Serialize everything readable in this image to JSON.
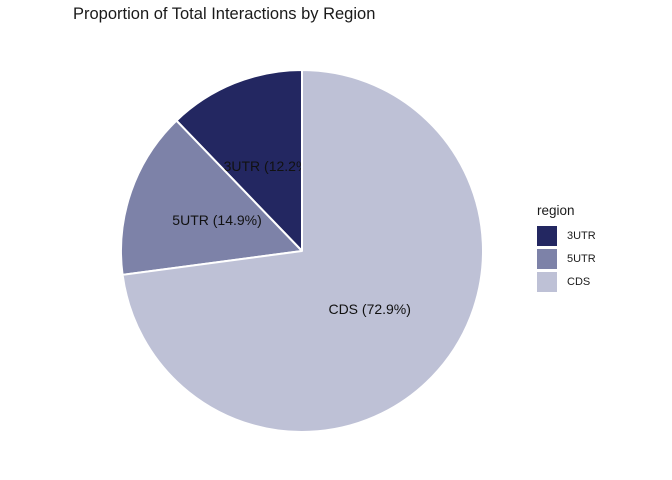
{
  "title": "Proportion of Total Interactions by Region",
  "chart_data": {
    "type": "pie",
    "title": "Proportion of Total Interactions by Region",
    "categories": [
      "3UTR",
      "5UTR",
      "CDS"
    ],
    "values": [
      12.2,
      14.9,
      72.9
    ],
    "unit": "percent",
    "slice_labels": [
      "3UTR (12.2%)",
      "5UTR (14.9%)",
      "CDS (72.9%)"
    ],
    "colors": [
      "#232761",
      "#7d82a8",
      "#bec1d6"
    ],
    "separator_color": "#ffffff",
    "start_angle_deg": 90,
    "direction": "counterclockwise",
    "legend": {
      "title": "region",
      "position": "right",
      "items": [
        {
          "label": "3UTR",
          "color": "#232761"
        },
        {
          "label": "5UTR",
          "color": "#7d82a8"
        },
        {
          "label": "CDS",
          "color": "#bec1d6"
        }
      ]
    }
  }
}
